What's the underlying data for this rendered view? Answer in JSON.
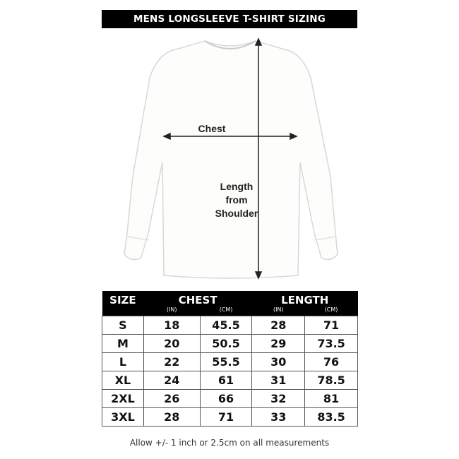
{
  "title": "MENS LONGSLEEVE T-SHIRT SIZING",
  "diagram": {
    "chest_label": "Chest",
    "length_label_lines": [
      "Length",
      "from",
      "Shoulder"
    ]
  },
  "table": {
    "headers": {
      "size": "SIZE",
      "chest": "CHEST",
      "length": "LENGTH"
    },
    "units": [
      "(IN)",
      "(CM)",
      "(IN)",
      "(CM)"
    ],
    "rows": [
      [
        "S",
        "18",
        "45.5",
        "28",
        "71"
      ],
      [
        "M",
        "20",
        "50.5",
        "29",
        "73.5"
      ],
      [
        "L",
        "22",
        "55.5",
        "30",
        "76"
      ],
      [
        "XL",
        "24",
        "61",
        "31",
        "78.5"
      ],
      [
        "2XL",
        "26",
        "66",
        "32",
        "81"
      ],
      [
        "3XL",
        "28",
        "71",
        "33",
        "83.5"
      ]
    ]
  },
  "note": "Allow +/- 1 inch or 2.5cm on all measurements"
}
